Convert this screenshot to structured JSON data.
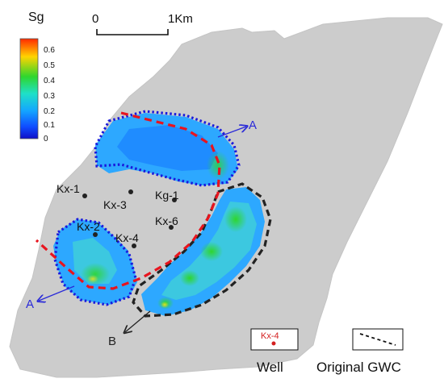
{
  "legend": {
    "title": "Sg",
    "ticks": [
      "0.6",
      "0.5",
      "0.4",
      "0.3",
      "0.2",
      "0.1",
      "0"
    ],
    "colors": [
      "#ff2a00",
      "#ffd400",
      "#2ed62e",
      "#1fe0c8",
      "#14a6ff",
      "#0f4dff",
      "#1010c8"
    ]
  },
  "scale_bar": {
    "start_label": "0",
    "end_label": "1Km"
  },
  "wells": [
    {
      "name": "Kx-1"
    },
    {
      "name": "Kx-3"
    },
    {
      "name": "Kg-1"
    },
    {
      "name": "Kx-6"
    },
    {
      "name": "Kx-2"
    },
    {
      "name": "Kx-4"
    }
  ],
  "section_lines": [
    {
      "end1": "A",
      "end2": "A"
    },
    {
      "end1": "B"
    }
  ],
  "map_legend": {
    "well_sample": "Kx-4",
    "well_label": "Well",
    "gwc_label": "Original GWC"
  },
  "colors": {
    "reservoir_gray": "#cccccc",
    "outline_blue": "#1a1adc",
    "gwc_red": "#e8141e",
    "outline_black": "#222222",
    "arrow_blue": "#2a2ad8"
  }
}
